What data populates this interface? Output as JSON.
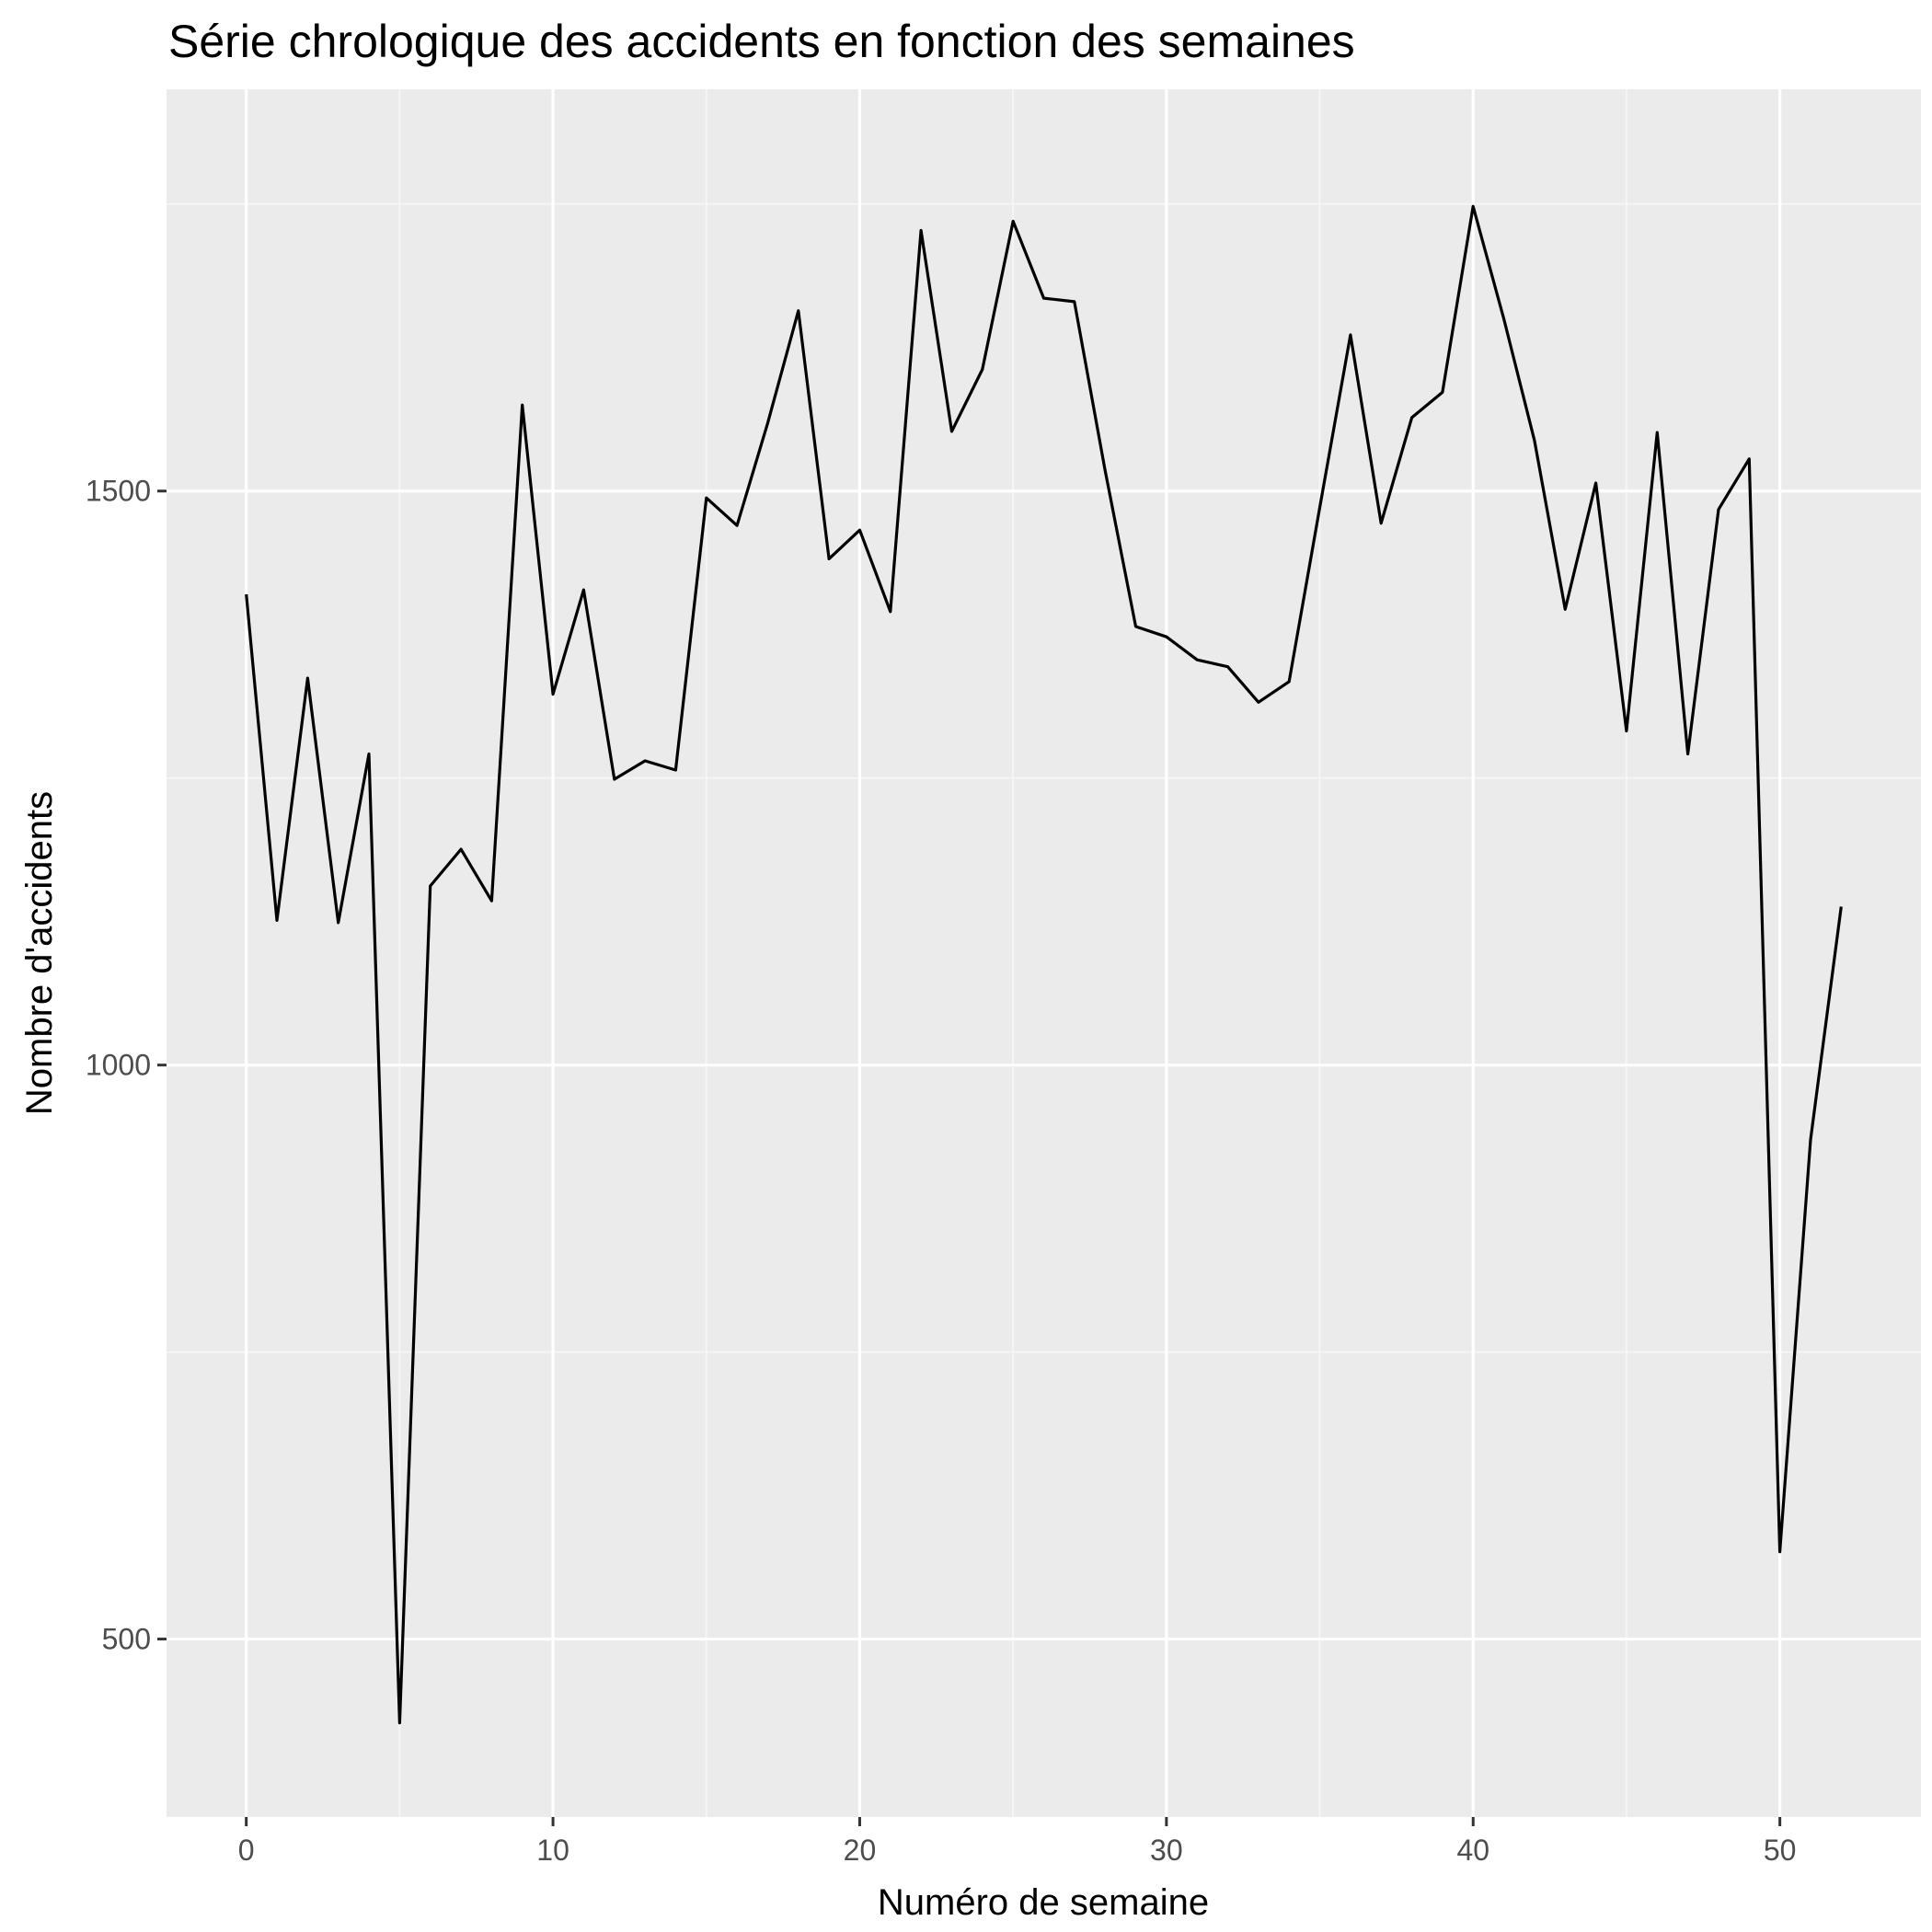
{
  "colors": {
    "panel_background": "#ebebeb",
    "grid_major": "#ffffff",
    "grid_minor": "#f5f5f5",
    "line": "#000000",
    "tick": "#333333"
  },
  "chart_data": {
    "type": "line",
    "title": "Série chrologique des accidents en fonction des semaines",
    "xlabel": "Numéro de semaine",
    "ylabel": "Nombre d'accidents",
    "xlim": [
      -2.6,
      54.6
    ],
    "ylim": [
      345,
      1850
    ],
    "x_ticks": [
      0,
      10,
      20,
      30,
      40,
      50
    ],
    "y_ticks": [
      500,
      1000,
      1500
    ],
    "x_tick_labels": [
      "0",
      "10",
      "20",
      "30",
      "40",
      "50"
    ],
    "y_tick_labels": [
      "500",
      "1000",
      "1500"
    ],
    "grid": true,
    "legend": "none",
    "x": [
      0,
      1,
      2,
      3,
      4,
      5,
      6,
      7,
      8,
      9,
      10,
      11,
      12,
      13,
      14,
      15,
      16,
      17,
      18,
      19,
      20,
      21,
      22,
      23,
      24,
      25,
      26,
      27,
      28,
      29,
      30,
      31,
      32,
      33,
      34,
      35,
      36,
      37,
      38,
      39,
      40,
      41,
      42,
      43,
      44,
      45,
      46,
      47,
      48,
      49,
      50,
      51,
      52
    ],
    "y": [
      1410,
      1126,
      1337,
      1124,
      1271,
      427,
      1156,
      1188,
      1143,
      1575,
      1323,
      1414,
      1249,
      1265,
      1257,
      1494,
      1470,
      1559,
      1657,
      1441,
      1466,
      1395,
      1727,
      1552,
      1606,
      1735,
      1668,
      1665,
      1518,
      1382,
      1373,
      1353,
      1347,
      1316,
      1334,
      1486,
      1636,
      1472,
      1564,
      1586,
      1748,
      1650,
      1544,
      1397,
      1507,
      1291,
      1551,
      1271,
      1484,
      1528,
      576,
      935,
      1138
    ]
  }
}
